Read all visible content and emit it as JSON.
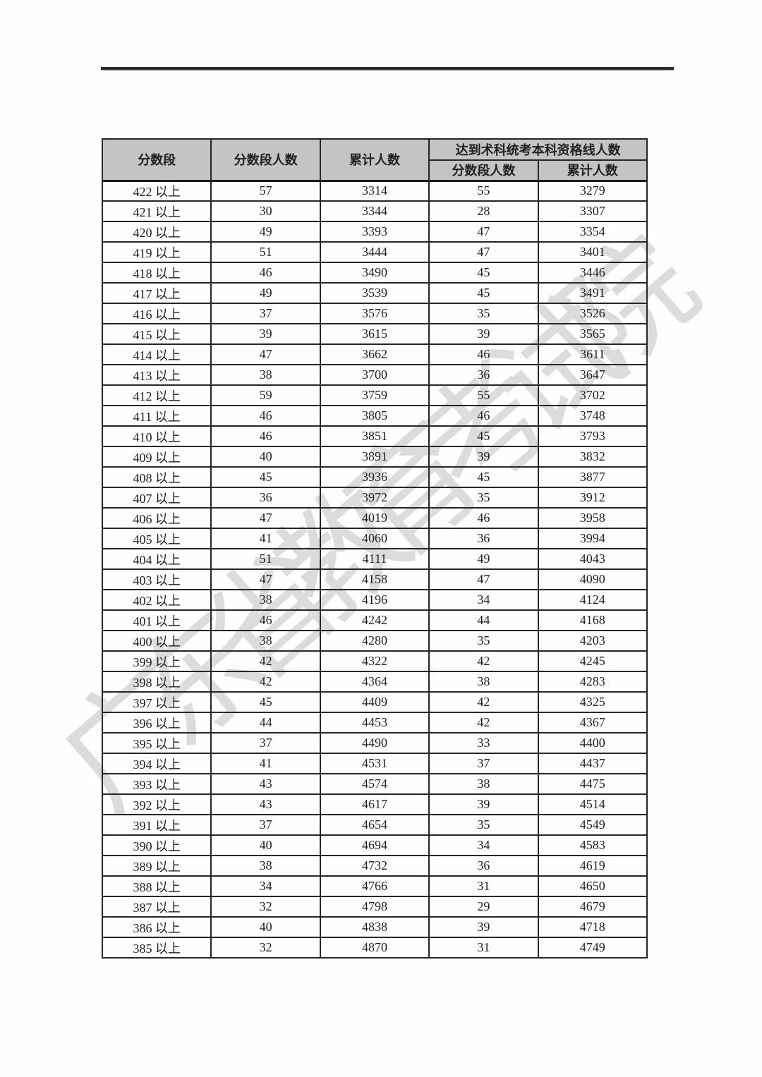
{
  "page": {
    "kind": "scanned score-distribution document page"
  },
  "watermark": {
    "text": "广东省教育考试院",
    "color": "#c6c6c6"
  },
  "table": {
    "header_bg": "#c4c4c4",
    "headers": {
      "score_range": "分数段",
      "segment_count": "分数段人数",
      "cumulative_count": "累计人数",
      "qualified_group": "达到术科统考本科资格线人数",
      "qualified_segment_count": "分数段人数",
      "qualified_cumulative_count": "累计人数"
    },
    "rows": [
      [
        "422 以上",
        "57",
        "3314",
        "55",
        "3279"
      ],
      [
        "421 以上",
        "30",
        "3344",
        "28",
        "3307"
      ],
      [
        "420 以上",
        "49",
        "3393",
        "47",
        "3354"
      ],
      [
        "419 以上",
        "51",
        "3444",
        "47",
        "3401"
      ],
      [
        "418 以上",
        "46",
        "3490",
        "45",
        "3446"
      ],
      [
        "417 以上",
        "49",
        "3539",
        "45",
        "3491"
      ],
      [
        "416 以上",
        "37",
        "3576",
        "35",
        "3526"
      ],
      [
        "415 以上",
        "39",
        "3615",
        "39",
        "3565"
      ],
      [
        "414 以上",
        "47",
        "3662",
        "46",
        "3611"
      ],
      [
        "413 以上",
        "38",
        "3700",
        "36",
        "3647"
      ],
      [
        "412 以上",
        "59",
        "3759",
        "55",
        "3702"
      ],
      [
        "411 以上",
        "46",
        "3805",
        "46",
        "3748"
      ],
      [
        "410 以上",
        "46",
        "3851",
        "45",
        "3793"
      ],
      [
        "409 以上",
        "40",
        "3891",
        "39",
        "3832"
      ],
      [
        "408 以上",
        "45",
        "3936",
        "45",
        "3877"
      ],
      [
        "407 以上",
        "36",
        "3972",
        "35",
        "3912"
      ],
      [
        "406 以上",
        "47",
        "4019",
        "46",
        "3958"
      ],
      [
        "405 以上",
        "41",
        "4060",
        "36",
        "3994"
      ],
      [
        "404 以上",
        "51",
        "4111",
        "49",
        "4043"
      ],
      [
        "403 以上",
        "47",
        "4158",
        "47",
        "4090"
      ],
      [
        "402 以上",
        "38",
        "4196",
        "34",
        "4124"
      ],
      [
        "401 以上",
        "46",
        "4242",
        "44",
        "4168"
      ],
      [
        "400 以上",
        "38",
        "4280",
        "35",
        "4203"
      ],
      [
        "399 以上",
        "42",
        "4322",
        "42",
        "4245"
      ],
      [
        "398 以上",
        "42",
        "4364",
        "38",
        "4283"
      ],
      [
        "397 以上",
        "45",
        "4409",
        "42",
        "4325"
      ],
      [
        "396 以上",
        "44",
        "4453",
        "42",
        "4367"
      ],
      [
        "395 以上",
        "37",
        "4490",
        "33",
        "4400"
      ],
      [
        "394 以上",
        "41",
        "4531",
        "37",
        "4437"
      ],
      [
        "393 以上",
        "43",
        "4574",
        "38",
        "4475"
      ],
      [
        "392 以上",
        "43",
        "4617",
        "39",
        "4514"
      ],
      [
        "391 以上",
        "37",
        "4654",
        "35",
        "4549"
      ],
      [
        "390 以上",
        "40",
        "4694",
        "34",
        "4583"
      ],
      [
        "389 以上",
        "38",
        "4732",
        "36",
        "4619"
      ],
      [
        "388 以上",
        "34",
        "4766",
        "31",
        "4650"
      ],
      [
        "387 以上",
        "32",
        "4798",
        "29",
        "4679"
      ],
      [
        "386 以上",
        "40",
        "4838",
        "39",
        "4718"
      ],
      [
        "385 以上",
        "32",
        "4870",
        "31",
        "4749"
      ]
    ]
  }
}
